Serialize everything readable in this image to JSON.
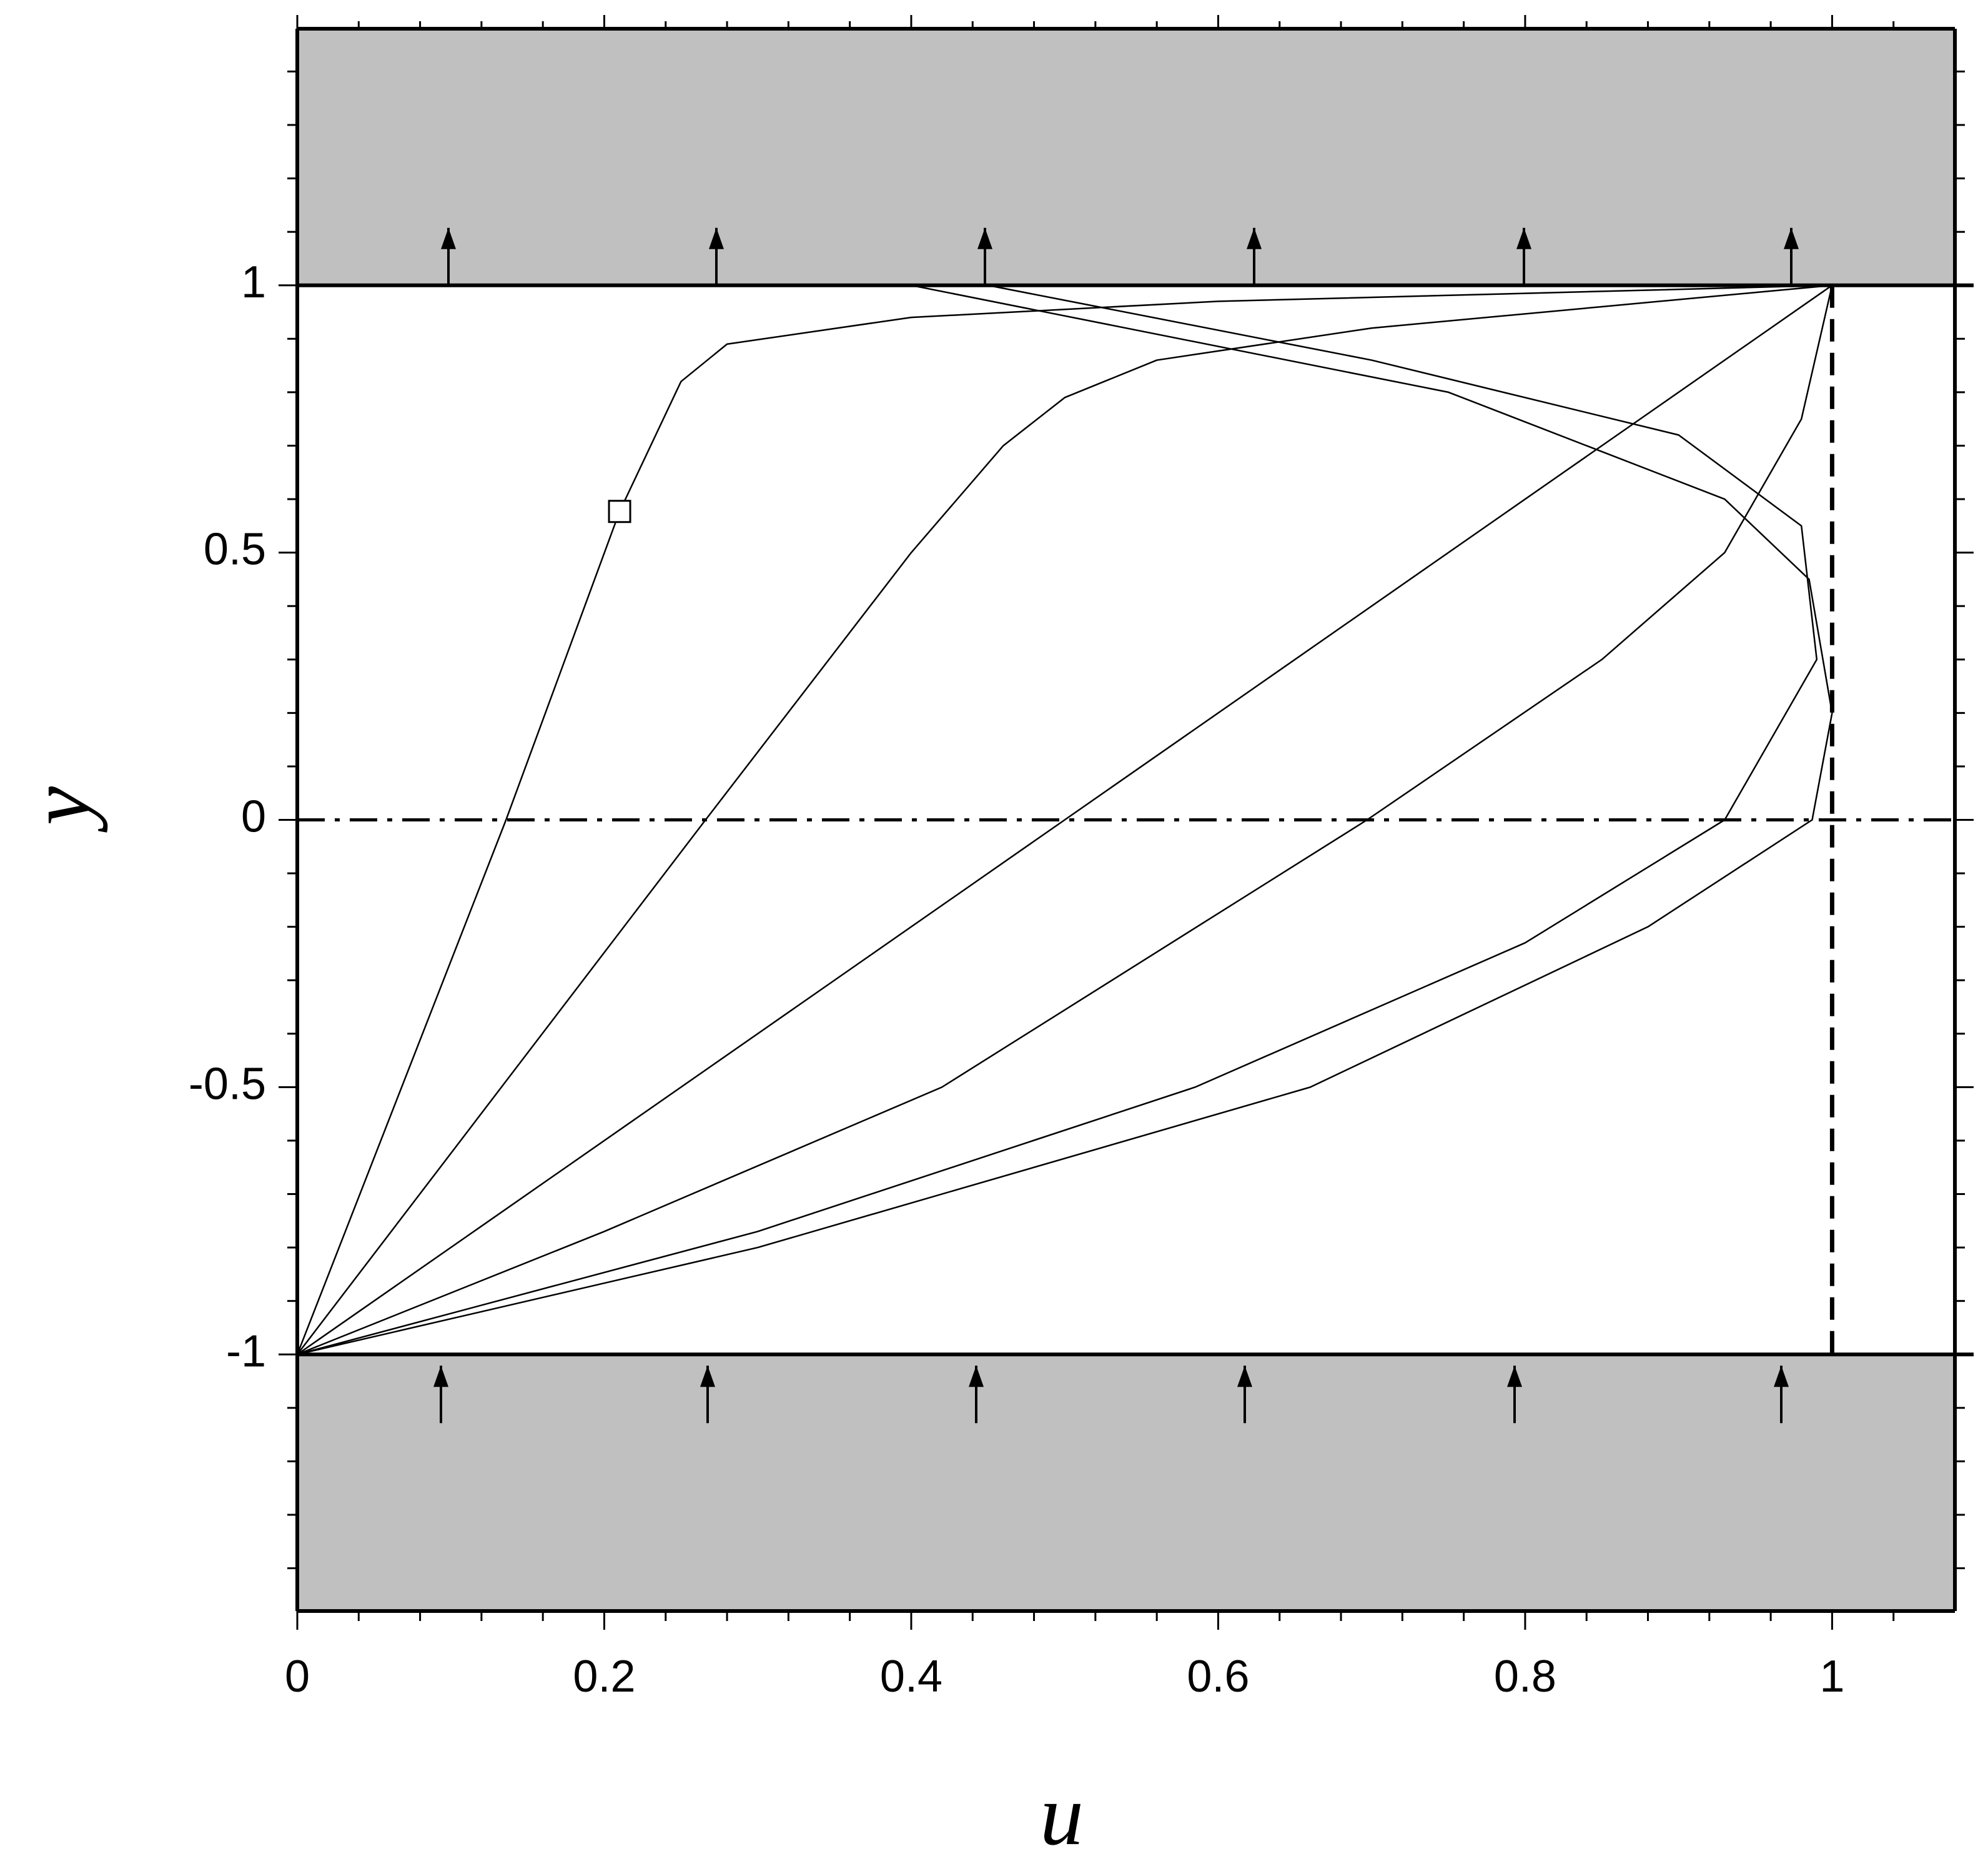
{
  "chart_data": {
    "type": "line",
    "x_label": "u",
    "y_label": "y",
    "xlim": [
      0,
      1.08
    ],
    "ylim": [
      -1.48,
      1.48
    ],
    "xticks": [
      0,
      0.2,
      0.4,
      0.6,
      0.8,
      1
    ],
    "yticks": [
      -1,
      -0.5,
      0,
      0.5,
      1
    ],
    "walls": [
      -1,
      1
    ],
    "wall_color": "#c0c0c0",
    "reference_lines": [
      {
        "axis": "x",
        "value": 1,
        "style": "dashed"
      },
      {
        "axis": "y",
        "value": 0,
        "style": "dashdot"
      }
    ],
    "marker": {
      "x": 0.21,
      "y": 0.577
    },
    "series": [
      {
        "color": "#000000",
        "x": [
          0,
          0.068,
          0.136,
          0.21,
          0.25,
          0.28,
          0.4,
          0.6,
          0.8,
          1
        ],
        "values": [
          -1,
          -0.5,
          0,
          0.577,
          0.82,
          0.89,
          0.94,
          0.97,
          0.985,
          1
        ]
      },
      {
        "color": "#000000",
        "x": [
          0,
          0.133,
          0.266,
          0.4,
          0.46,
          0.5,
          0.56,
          0.7,
          0.85,
          1
        ],
        "values": [
          -1,
          -0.5,
          0,
          0.5,
          0.7,
          0.79,
          0.86,
          0.92,
          0.96,
          1
        ]
      },
      {
        "color": "#000000",
        "x": [
          0,
          0.5,
          1
        ],
        "values": [
          -1,
          0,
          1
        ]
      },
      {
        "color": "#000000",
        "x": [
          0,
          0.2,
          0.42,
          0.697,
          0.85,
          0.93,
          0.98,
          1
        ],
        "values": [
          -1,
          -0.77,
          -0.5,
          0,
          0.3,
          0.5,
          0.75,
          1
        ]
      },
      {
        "color": "#000000",
        "x": [
          0,
          0.3,
          0.585,
          0.8,
          0.93,
          0.99,
          0.98,
          0.9,
          0.7,
          0.45
        ],
        "values": [
          -1,
          -0.77,
          -0.5,
          -0.23,
          0,
          0.3,
          0.55,
          0.72,
          0.86,
          1
        ]
      },
      {
        "color": "#000000",
        "x": [
          0,
          0.3,
          0.66,
          0.88,
          0.987,
          1,
          0.985,
          0.93,
          0.75,
          0.4
        ],
        "values": [
          -1,
          -0.8,
          -0.5,
          -0.2,
          0,
          0.2,
          0.45,
          0.6,
          0.8,
          1
        ]
      }
    ]
  }
}
